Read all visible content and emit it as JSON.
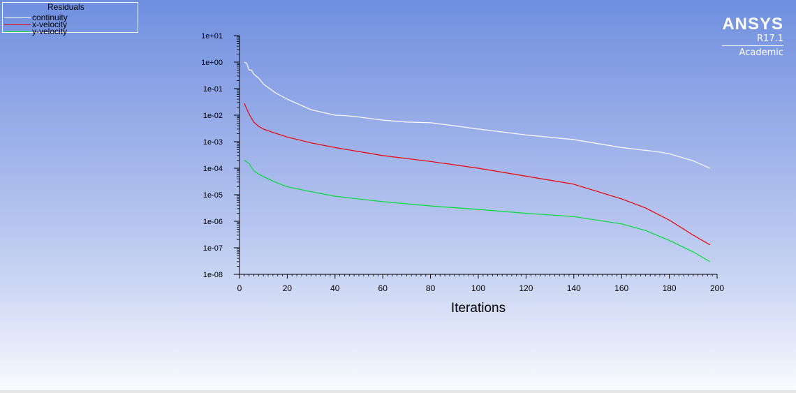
{
  "legend": {
    "title": "Residuals",
    "items": [
      {
        "label": "continuity",
        "color": "#ffffff"
      },
      {
        "label": "x-velocity",
        "color": "#ee0000"
      },
      {
        "label": "y-velocity",
        "color": "#00dd33"
      }
    ]
  },
  "brand": {
    "name": "ANSYS",
    "version": "R17.1",
    "edition": "Academic"
  },
  "chart_data": {
    "type": "line",
    "xlabel": "Iterations",
    "ylabel": "",
    "x_ticks": [
      0,
      20,
      40,
      60,
      80,
      100,
      120,
      140,
      160,
      180,
      200
    ],
    "y_ticks": [
      "1e-08",
      "1e-07",
      "1e-06",
      "1e-05",
      "1e-04",
      "1e-03",
      "1e-02",
      "1e-01",
      "1e+00",
      "1e+01"
    ],
    "xlim": [
      0,
      200
    ],
    "ylim": [
      1e-08,
      10
    ],
    "y_scale": "log",
    "series": [
      {
        "name": "continuity",
        "color": "#ffffff",
        "x": [
          2,
          3,
          4,
          5,
          6,
          8,
          10,
          15,
          20,
          30,
          40,
          45,
          50,
          60,
          70,
          80,
          90,
          100,
          120,
          140,
          160,
          175,
          180,
          190,
          197
        ],
        "y": [
          1.0,
          0.9,
          0.5,
          0.5,
          0.35,
          0.25,
          0.15,
          0.07,
          0.04,
          0.016,
          0.01,
          0.0095,
          0.0085,
          0.0065,
          0.0055,
          0.0052,
          0.004,
          0.003,
          0.0018,
          0.0012,
          0.0006,
          0.00042,
          0.00035,
          0.00019,
          0.0001
        ]
      },
      {
        "name": "x-velocity",
        "color": "#ee0000",
        "x": [
          2,
          4,
          6,
          8,
          10,
          15,
          20,
          30,
          40,
          60,
          80,
          100,
          120,
          140,
          160,
          170,
          180,
          190,
          197
        ],
        "y": [
          0.028,
          0.011,
          0.0055,
          0.0038,
          0.003,
          0.0021,
          0.0015,
          0.0009,
          0.0006,
          0.0003,
          0.00018,
          0.0001,
          5e-05,
          2.5e-05,
          7e-06,
          3.2e-06,
          1.1e-06,
          3e-07,
          1.3e-07
        ]
      },
      {
        "name": "y-velocity",
        "color": "#00dd33",
        "x": [
          2,
          4,
          6,
          8,
          10,
          15,
          20,
          30,
          40,
          60,
          80,
          100,
          120,
          140,
          160,
          170,
          180,
          190,
          197
        ],
        "y": [
          0.0002,
          0.00015,
          8e-05,
          6e-05,
          4.8e-05,
          3e-05,
          2e-05,
          1.3e-05,
          8.8e-06,
          5.5e-06,
          3.8e-06,
          2.8e-06,
          2e-06,
          1.5e-06,
          8e-07,
          4.5e-07,
          1.9e-07,
          7e-08,
          3e-08
        ]
      }
    ]
  }
}
